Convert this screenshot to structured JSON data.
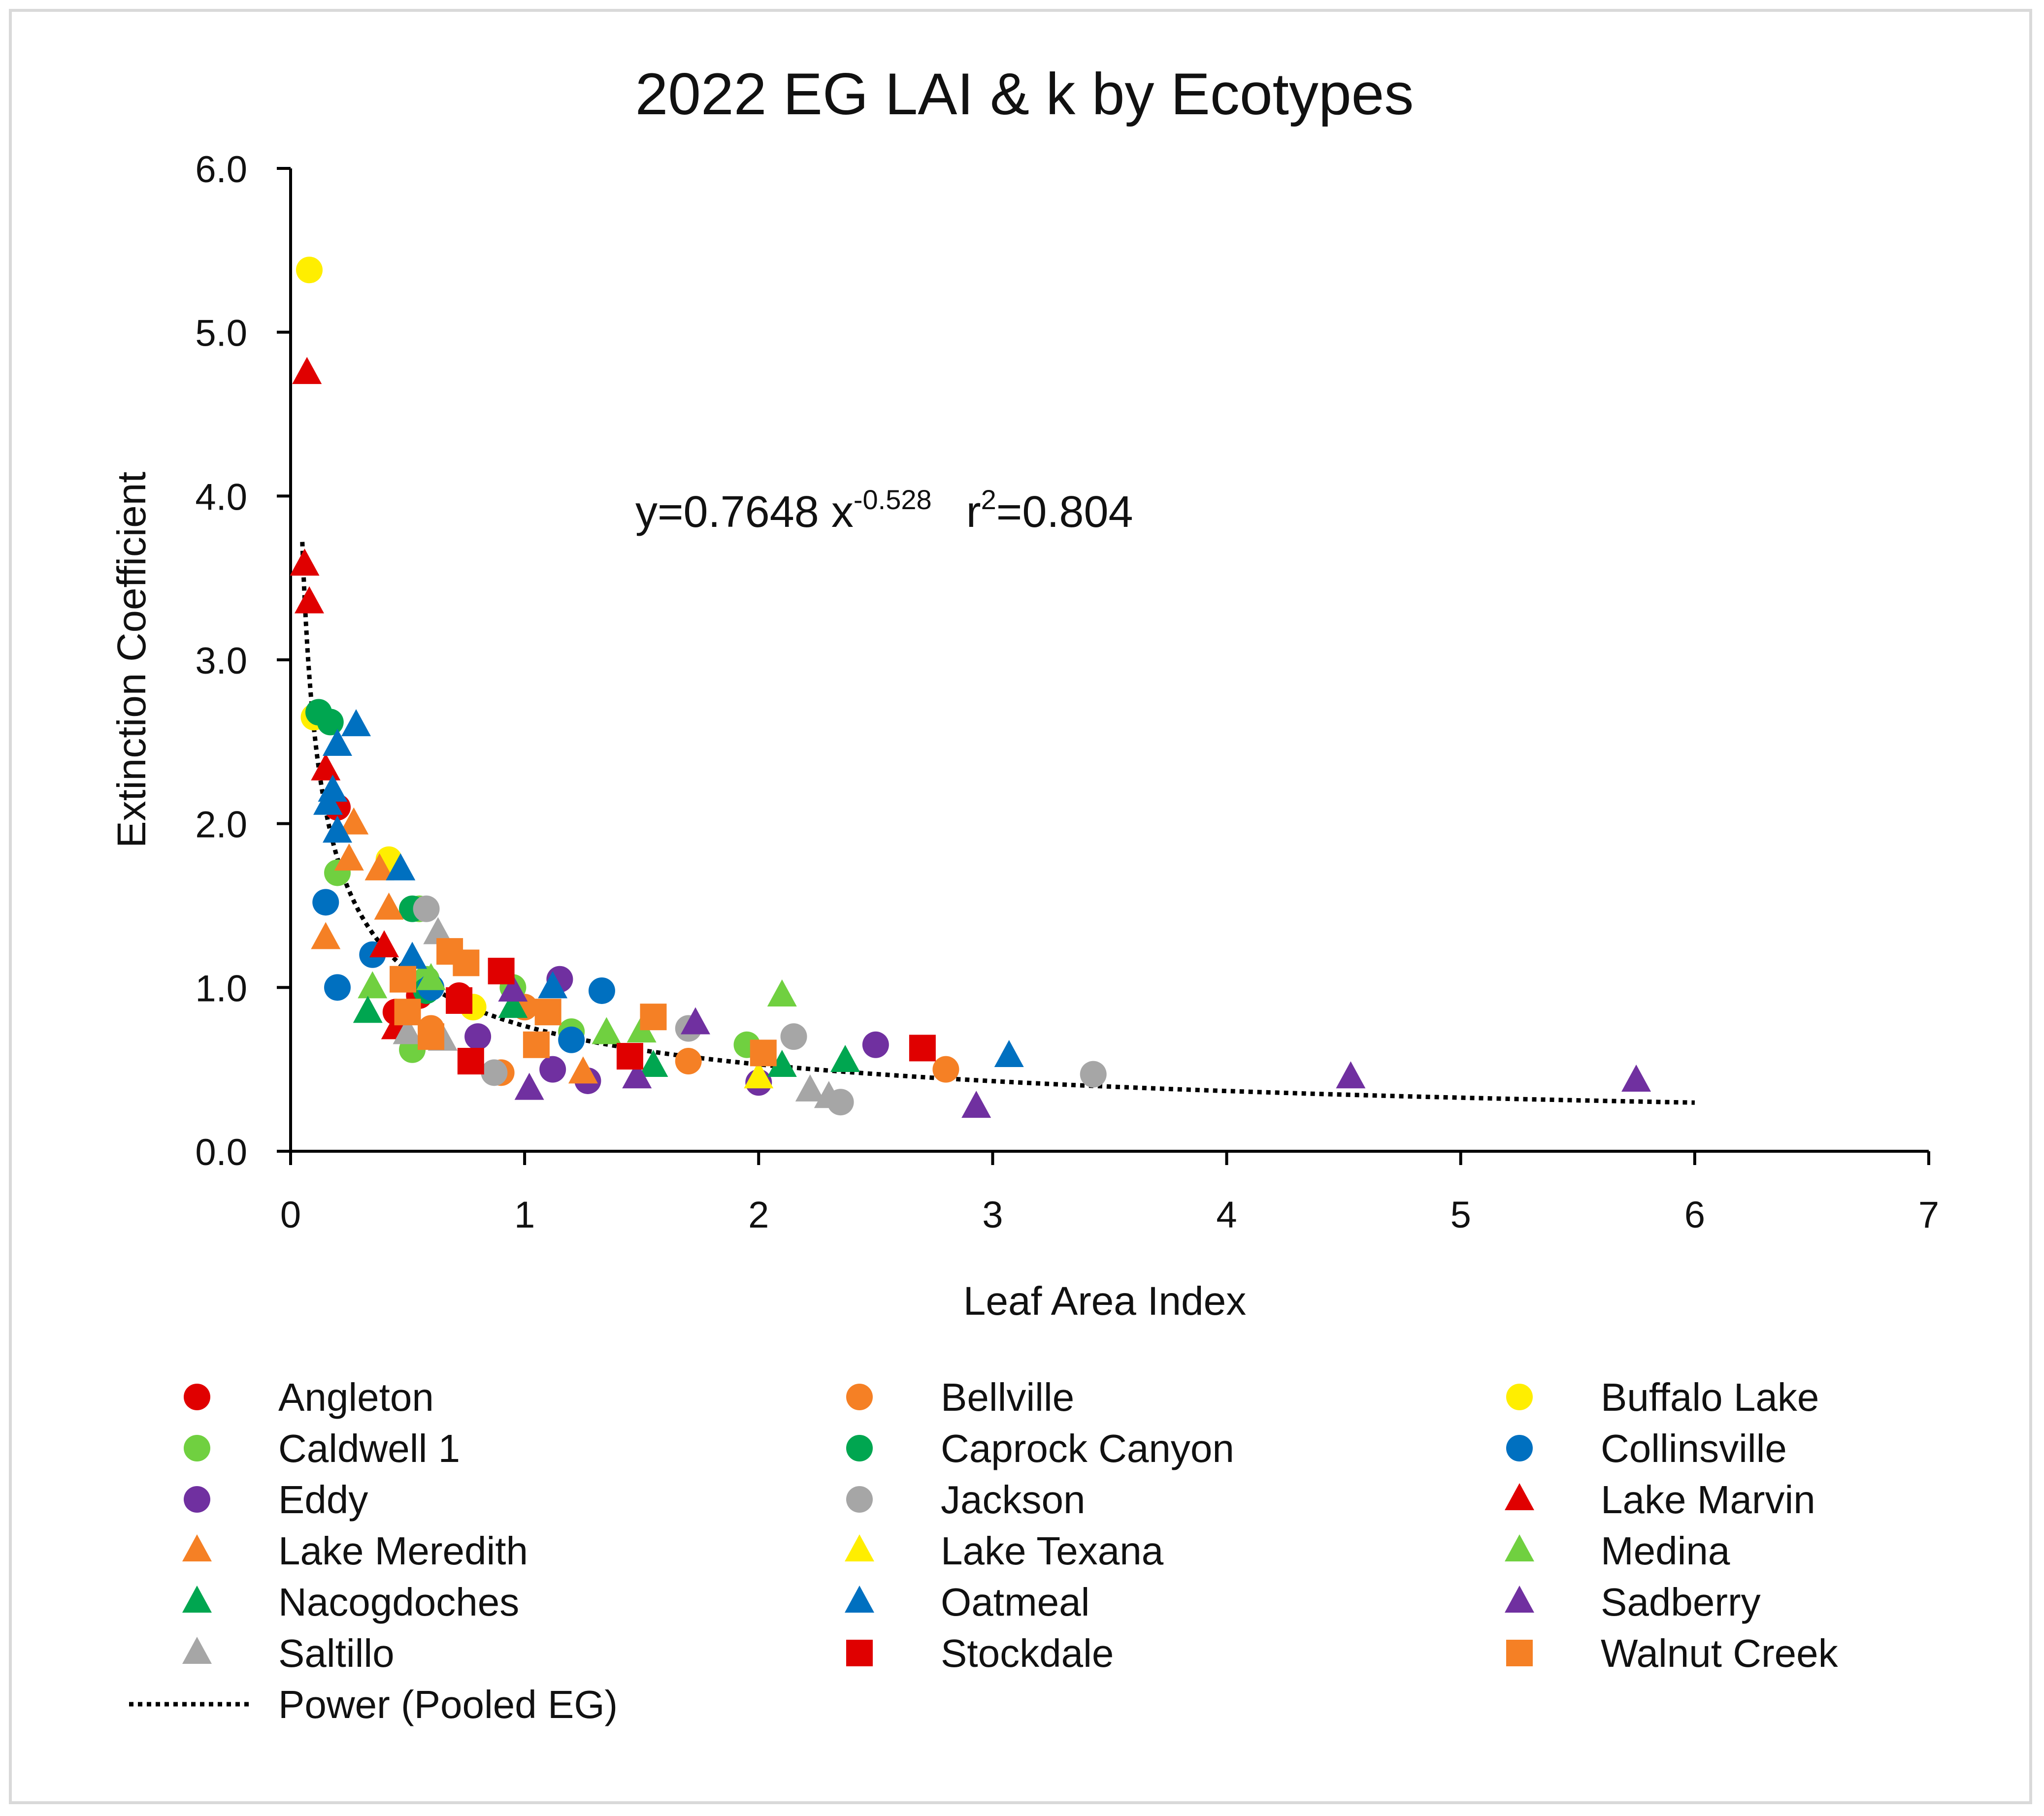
{
  "chart_data": {
    "type": "scatter",
    "title": "2022 EG LAI & k by Ecotypes",
    "xlabel": "Leaf Area Index",
    "ylabel": "Extinction Coefficient",
    "xlim": [
      0,
      7
    ],
    "ylim": [
      0,
      6
    ],
    "x_ticks": [
      "0",
      "1",
      "2",
      "3",
      "4",
      "5",
      "6",
      "7"
    ],
    "y_ticks": [
      "0.0",
      "1.0",
      "2.0",
      "3.0",
      "4.0",
      "5.0",
      "6.0"
    ],
    "equation": {
      "prefix": "y=0.7648 x",
      "exponent": "-0.528",
      "r_label": "r",
      "r_exp": "2",
      "r_value": "=0.804"
    },
    "trendline": {
      "name": "Power (Pooled EG)",
      "a": 0.7648,
      "b": -0.528,
      "x_range": [
        0.05,
        6.0
      ],
      "color": "#000000",
      "style": "dotted"
    },
    "series": [
      {
        "name": "Angleton",
        "marker": "circle",
        "color": "#e00000",
        "points": [
          [
            0.2,
            2.1
          ],
          [
            0.72,
            0.95
          ],
          [
            0.45,
            0.85
          ],
          [
            0.55,
            0.95
          ]
        ]
      },
      {
        "name": "Bellville",
        "marker": "circle",
        "color": "#f58025",
        "points": [
          [
            1.7,
            0.55
          ],
          [
            2.8,
            0.5
          ],
          [
            0.9,
            0.48
          ],
          [
            1.0,
            0.88
          ],
          [
            0.6,
            0.75
          ]
        ]
      },
      {
        "name": "Buffalo Lake",
        "marker": "circle",
        "color": "#ffee00",
        "points": [
          [
            0.08,
            5.38
          ],
          [
            0.42,
            1.78
          ],
          [
            0.1,
            2.65
          ],
          [
            0.78,
            0.88
          ]
        ]
      },
      {
        "name": "Caldwell 1",
        "marker": "circle",
        "color": "#70d040",
        "points": [
          [
            0.2,
            1.7
          ],
          [
            0.52,
            0.62
          ],
          [
            0.55,
            1.48
          ],
          [
            0.95,
            1.0
          ],
          [
            1.2,
            0.73
          ],
          [
            1.95,
            0.65
          ],
          [
            0.58,
            1.05
          ]
        ]
      },
      {
        "name": "Caprock Canyon",
        "marker": "circle",
        "color": "#00a650",
        "points": [
          [
            0.12,
            2.68
          ],
          [
            0.17,
            2.62
          ],
          [
            0.52,
            1.48
          ],
          [
            0.58,
            0.98
          ]
        ]
      },
      {
        "name": "Collinsville",
        "marker": "circle",
        "color": "#0070c0",
        "points": [
          [
            0.15,
            1.52
          ],
          [
            0.2,
            1.0
          ],
          [
            0.35,
            1.2
          ],
          [
            0.6,
            1.0
          ],
          [
            1.2,
            0.68
          ],
          [
            1.33,
            0.98
          ]
        ]
      },
      {
        "name": "Eddy",
        "marker": "circle",
        "color": "#7030a0",
        "points": [
          [
            1.15,
            1.05
          ],
          [
            0.8,
            0.7
          ],
          [
            1.12,
            0.5
          ],
          [
            1.27,
            0.43
          ],
          [
            2.0,
            0.42
          ],
          [
            2.5,
            0.65
          ]
        ]
      },
      {
        "name": "Jackson",
        "marker": "circle",
        "color": "#a6a6a6",
        "points": [
          [
            0.58,
            1.48
          ],
          [
            0.87,
            0.48
          ],
          [
            1.7,
            0.75
          ],
          [
            2.15,
            0.7
          ],
          [
            2.35,
            0.3
          ],
          [
            3.43,
            0.47
          ]
        ]
      },
      {
        "name": "Lake Marvin",
        "marker": "triangle",
        "color": "#e00000",
        "points": [
          [
            0.07,
            4.75
          ],
          [
            0.06,
            3.58
          ],
          [
            0.08,
            3.35
          ],
          [
            0.15,
            2.33
          ],
          [
            0.4,
            1.25
          ],
          [
            0.45,
            0.75
          ]
        ]
      },
      {
        "name": "Lake Meredith",
        "marker": "triangle",
        "color": "#f58025",
        "points": [
          [
            0.15,
            1.3
          ],
          [
            0.27,
            2.0
          ],
          [
            0.25,
            1.78
          ],
          [
            0.38,
            1.72
          ],
          [
            0.42,
            1.48
          ],
          [
            1.25,
            0.48
          ]
        ]
      },
      {
        "name": "Lake Texana",
        "marker": "triangle",
        "color": "#ffee00",
        "points": [
          [
            2.0,
            0.45
          ]
        ]
      },
      {
        "name": "Medina",
        "marker": "triangle",
        "color": "#70d040",
        "points": [
          [
            0.35,
            1.0
          ],
          [
            0.6,
            1.05
          ],
          [
            1.35,
            0.72
          ],
          [
            1.5,
            0.73
          ],
          [
            2.1,
            0.95
          ]
        ]
      },
      {
        "name": "Nacogdoches",
        "marker": "triangle",
        "color": "#00a650",
        "points": [
          [
            0.33,
            0.85
          ],
          [
            0.95,
            0.88
          ],
          [
            1.55,
            0.52
          ],
          [
            2.1,
            0.52
          ],
          [
            2.37,
            0.55
          ]
        ]
      },
      {
        "name": "Oatmeal",
        "marker": "triangle",
        "color": "#0070c0",
        "points": [
          [
            0.28,
            2.6
          ],
          [
            0.2,
            2.48
          ],
          [
            0.18,
            2.2
          ],
          [
            0.16,
            2.12
          ],
          [
            0.2,
            1.95
          ],
          [
            0.47,
            1.72
          ],
          [
            0.52,
            1.18
          ],
          [
            1.12,
            1.0
          ],
          [
            3.07,
            0.58
          ]
        ]
      },
      {
        "name": "Sadberry",
        "marker": "triangle",
        "color": "#7030a0",
        "points": [
          [
            0.95,
            0.98
          ],
          [
            1.02,
            0.38
          ],
          [
            1.48,
            0.45
          ],
          [
            1.73,
            0.78
          ],
          [
            2.93,
            0.27
          ],
          [
            4.53,
            0.45
          ],
          [
            5.75,
            0.43
          ]
        ]
      },
      {
        "name": "Saltillo",
        "marker": "triangle",
        "color": "#a6a6a6",
        "points": [
          [
            0.63,
            1.33
          ],
          [
            0.5,
            0.72
          ],
          [
            0.65,
            0.68
          ],
          [
            2.22,
            0.37
          ],
          [
            2.3,
            0.33
          ]
        ]
      },
      {
        "name": "Stockdale",
        "marker": "square",
        "color": "#e00000",
        "points": [
          [
            0.9,
            1.1
          ],
          [
            0.72,
            0.92
          ],
          [
            0.77,
            0.55
          ],
          [
            1.45,
            0.58
          ],
          [
            2.7,
            0.63
          ]
        ]
      },
      {
        "name": "Walnut Creek",
        "marker": "square",
        "color": "#f58025",
        "points": [
          [
            0.68,
            1.22
          ],
          [
            0.75,
            1.15
          ],
          [
            0.48,
            1.05
          ],
          [
            0.5,
            0.85
          ],
          [
            0.6,
            0.7
          ],
          [
            1.05,
            0.65
          ],
          [
            1.1,
            0.85
          ],
          [
            1.55,
            0.82
          ],
          [
            2.02,
            0.6
          ]
        ]
      }
    ],
    "legend_position": "bottom"
  }
}
